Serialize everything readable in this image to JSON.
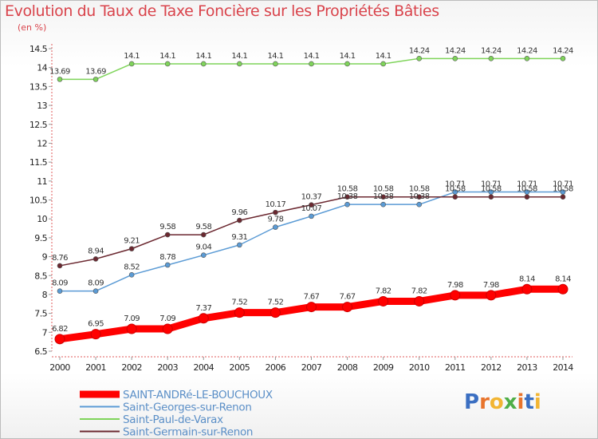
{
  "title": "Evolution du Taux de Taxe Foncière sur les Propriétés Bâties",
  "unit_label": "(en %)",
  "logo_text": "Proxiti",
  "chart_data": {
    "type": "line",
    "title": "Evolution du Taux de Taxe Foncière sur les Propriétés Bâties",
    "ylabel": "(en %)",
    "xlabel": "",
    "x": [
      2000,
      2001,
      2002,
      2003,
      2004,
      2005,
      2006,
      2007,
      2008,
      2009,
      2010,
      2011,
      2012,
      2013,
      2014
    ],
    "ylim": [
      6.5,
      14.5
    ],
    "yticks": [
      6.5,
      7,
      7.5,
      8,
      8.5,
      9,
      9.5,
      10,
      10.5,
      11,
      11.5,
      12,
      12.5,
      13,
      13.5,
      14,
      14.5
    ],
    "grid": false,
    "legend_position": "bottom-left",
    "series": [
      {
        "name": "SAINT-ANDRé-LE-BOUCHOUX",
        "color": "#ff0000",
        "highlight": true,
        "values": [
          6.82,
          6.95,
          7.09,
          7.09,
          7.37,
          7.52,
          7.52,
          7.67,
          7.67,
          7.82,
          7.82,
          7.98,
          7.98,
          8.14,
          8.14
        ]
      },
      {
        "name": "Saint-Georges-sur-Renon",
        "color": "#5b9bd5",
        "highlight": false,
        "values": [
          8.09,
          8.09,
          8.52,
          8.78,
          9.04,
          9.31,
          9.78,
          10.07,
          10.38,
          10.38,
          10.38,
          10.71,
          10.71,
          10.71,
          10.71
        ]
      },
      {
        "name": "Saint-Paul-de-Varax",
        "color": "#7fd45a",
        "highlight": false,
        "values": [
          13.69,
          13.69,
          14.1,
          14.1,
          14.1,
          14.1,
          14.1,
          14.1,
          14.1,
          14.1,
          14.24,
          14.24,
          14.24,
          14.24,
          14.24
        ]
      },
      {
        "name": "Saint-Germain-sur-Renon",
        "color": "#6b2830",
        "highlight": false,
        "values": [
          8.76,
          8.94,
          9.21,
          9.58,
          9.58,
          9.96,
          10.17,
          10.37,
          10.58,
          10.58,
          10.58,
          10.58,
          10.58,
          10.58,
          10.58
        ]
      }
    ]
  }
}
